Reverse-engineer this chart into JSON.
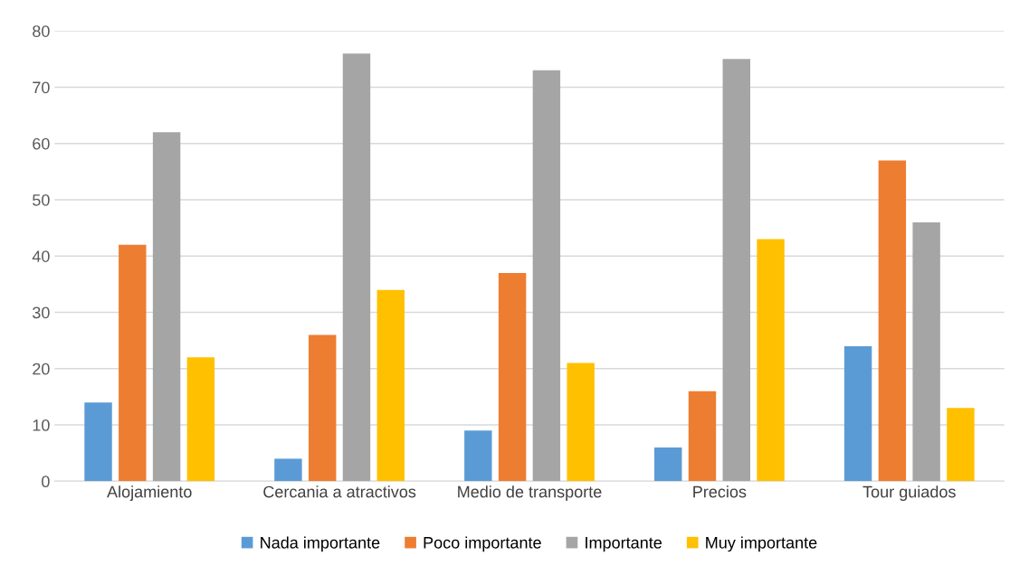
{
  "chart_data": {
    "type": "bar",
    "categories": [
      "Alojamiento",
      "Cercania a atractivos",
      "Medio de transporte",
      "Precios",
      "Tour guiados"
    ],
    "series": [
      {
        "name": "Nada importante",
        "color": "#5b9bd5",
        "values": [
          14,
          4,
          9,
          6,
          24
        ]
      },
      {
        "name": "Poco importante",
        "color": "#ed7d31",
        "values": [
          42,
          26,
          37,
          16,
          57
        ]
      },
      {
        "name": "Importante",
        "color": "#a5a5a5",
        "values": [
          62,
          76,
          73,
          75,
          46
        ]
      },
      {
        "name": "Muy importante",
        "color": "#ffc000",
        "values": [
          22,
          34,
          21,
          43,
          13
        ]
      }
    ],
    "ylim": [
      0,
      80
    ],
    "yticks": [
      0,
      10,
      20,
      30,
      40,
      50,
      60,
      70,
      80
    ],
    "grid": "y",
    "legend": "bottom"
  }
}
